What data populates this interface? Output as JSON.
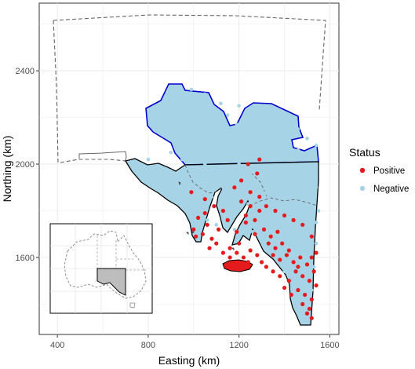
{
  "chart_data": {
    "type": "scatter",
    "subtype": "map-point-plot",
    "title": "",
    "xlabel": "Easting (km)",
    "ylabel": "Northing (km)",
    "xlim": [
      320,
      1640
    ],
    "ylim": [
      1270,
      2690
    ],
    "x_ticks": [
      400,
      800,
      1200,
      1600
    ],
    "y_ticks": [
      1600,
      2000,
      2400
    ],
    "grid": true,
    "legend_placement": "right",
    "legend": {
      "title": "Status",
      "entries": [
        {
          "label": "Positive",
          "color": "#e41a1c"
        },
        {
          "label": "Negative",
          "color": "#a6d4e6"
        }
      ]
    },
    "inset": {
      "description_icon": "australia-locator-map",
      "highlight_color": "#bdbdbd"
    },
    "outlines": {
      "region_color": "#000000",
      "extended_region_color": "#0000cc",
      "boundary_dashed_color": "#666666"
    },
    "series": [
      {
        "name": "Negative",
        "color": "#a6d4e6",
        "points": [
          [
            870,
            2220
          ],
          [
            910,
            2210
          ],
          [
            980,
            2250
          ],
          [
            1020,
            2190
          ],
          [
            1060,
            2230
          ],
          [
            1100,
            2180
          ],
          [
            1150,
            2210
          ],
          [
            1190,
            2170
          ],
          [
            1240,
            2200
          ],
          [
            1280,
            2150
          ],
          [
            1320,
            2180
          ],
          [
            1350,
            2140
          ],
          [
            1390,
            2170
          ],
          [
            1420,
            2120
          ],
          [
            1460,
            2150
          ],
          [
            1500,
            2110
          ],
          [
            1540,
            2080
          ],
          [
            960,
            2140
          ],
          [
            1010,
            2100
          ],
          [
            1060,
            2130
          ],
          [
            1110,
            2090
          ],
          [
            1160,
            2110
          ],
          [
            1210,
            2070
          ],
          [
            1260,
            2100
          ],
          [
            1310,
            2060
          ],
          [
            1360,
            2080
          ],
          [
            1410,
            2040
          ],
          [
            1460,
            2060
          ],
          [
            1510,
            2020
          ],
          [
            1540,
            1990
          ],
          [
            900,
            2050
          ],
          [
            950,
            2020
          ],
          [
            1000,
            2040
          ],
          [
            1050,
            2000
          ],
          [
            1100,
            2020
          ],
          [
            1150,
            1980
          ],
          [
            1200,
            2000
          ],
          [
            1250,
            1960
          ],
          [
            1300,
            1990
          ],
          [
            1350,
            1950
          ],
          [
            1400,
            1970
          ],
          [
            1450,
            1930
          ],
          [
            1500,
            1950
          ],
          [
            1540,
            1900
          ],
          [
            800,
            2020
          ],
          [
            850,
            1990
          ],
          [
            900,
            1970
          ],
          [
            950,
            1940
          ],
          [
            1000,
            1960
          ],
          [
            1040,
            1920
          ],
          [
            1090,
            1940
          ],
          [
            1130,
            1900
          ],
          [
            1170,
            1930
          ],
          [
            1220,
            1890
          ],
          [
            1270,
            1910
          ],
          [
            1320,
            1880
          ],
          [
            1370,
            1900
          ],
          [
            1420,
            1860
          ],
          [
            1470,
            1880
          ],
          [
            1520,
            1840
          ],
          [
            1550,
            1800
          ],
          [
            880,
            1900
          ],
          [
            920,
            1880
          ],
          [
            960,
            1860
          ],
          [
            1000,
            1880
          ],
          [
            1040,
            1840
          ],
          [
            1080,
            1860
          ],
          [
            1120,
            1820
          ],
          [
            1160,
            1850
          ],
          [
            1200,
            1810
          ],
          [
            1240,
            1830
          ],
          [
            1290,
            1800
          ],
          [
            1340,
            1820
          ],
          [
            1390,
            1790
          ],
          [
            1440,
            1810
          ],
          [
            1490,
            1770
          ],
          [
            1540,
            1750
          ],
          [
            1020,
            1780
          ],
          [
            1060,
            1760
          ],
          [
            1100,
            1740
          ],
          [
            1140,
            1760
          ],
          [
            1180,
            1720
          ],
          [
            1220,
            1740
          ],
          [
            1260,
            1710
          ],
          [
            1300,
            1730
          ],
          [
            1350,
            1700
          ],
          [
            1400,
            1720
          ],
          [
            1450,
            1690
          ],
          [
            1500,
            1710
          ],
          [
            1540,
            1660
          ],
          [
            1330,
            1640
          ],
          [
            1370,
            1620
          ],
          [
            1410,
            1600
          ],
          [
            1450,
            1620
          ],
          [
            1490,
            1580
          ],
          [
            1530,
            1560
          ],
          [
            1400,
            1540
          ],
          [
            1440,
            1500
          ],
          [
            1480,
            1480
          ],
          [
            1520,
            1460
          ],
          [
            1460,
            1420
          ],
          [
            1500,
            1400
          ],
          [
            1380,
            1680
          ],
          [
            1420,
            1660
          ],
          [
            1470,
            1640
          ],
          [
            1510,
            1620
          ],
          [
            990,
            2320
          ],
          [
            1050,
            2300
          ],
          [
            1120,
            2260
          ],
          [
            1200,
            2250
          ],
          [
            1300,
            2230
          ],
          [
            1380,
            2210
          ],
          [
            1450,
            2190
          ]
        ]
      },
      {
        "name": "Positive",
        "color": "#e41a1c",
        "points": [
          [
            990,
            1880
          ],
          [
            1050,
            1850
          ],
          [
            1090,
            1820
          ],
          [
            1130,
            1800
          ],
          [
            1020,
            1770
          ],
          [
            1060,
            1740
          ],
          [
            1000,
            1720
          ],
          [
            1040,
            1700
          ],
          [
            1080,
            1680
          ],
          [
            1110,
            1720
          ],
          [
            1150,
            1760
          ],
          [
            1190,
            1710
          ],
          [
            1230,
            1750
          ],
          [
            1270,
            1700
          ],
          [
            1310,
            1720
          ],
          [
            1340,
            1690
          ],
          [
            1370,
            1710
          ],
          [
            1330,
            1660
          ],
          [
            1360,
            1640
          ],
          [
            1390,
            1660
          ],
          [
            1420,
            1630
          ],
          [
            1350,
            1610
          ],
          [
            1380,
            1590
          ],
          [
            1410,
            1610
          ],
          [
            1440,
            1580
          ],
          [
            1470,
            1600
          ],
          [
            1500,
            1570
          ],
          [
            1530,
            1540
          ],
          [
            1480,
            1520
          ],
          [
            1510,
            1500
          ],
          [
            1540,
            1480
          ],
          [
            1460,
            1460
          ],
          [
            1490,
            1440
          ],
          [
            1520,
            1420
          ],
          [
            1480,
            1400
          ],
          [
            1510,
            1380
          ],
          [
            1500,
            1360
          ],
          [
            1520,
            1340
          ],
          [
            1180,
            1900
          ],
          [
            1210,
            1930
          ],
          [
            1250,
            1880
          ],
          [
            1290,
            1860
          ],
          [
            1210,
            1840
          ],
          [
            1250,
            1820
          ],
          [
            1290,
            1800
          ],
          [
            1230,
            1780
          ],
          [
            1270,
            1760
          ],
          [
            1160,
            1640
          ],
          [
            1190,
            1620
          ],
          [
            1220,
            1600
          ],
          [
            1250,
            1630
          ],
          [
            1280,
            1610
          ],
          [
            1240,
            1580
          ],
          [
            1300,
            1580
          ],
          [
            1320,
            1560
          ],
          [
            1350,
            1540
          ],
          [
            1380,
            1520
          ],
          [
            1420,
            1500
          ],
          [
            1450,
            1540
          ],
          [
            1400,
            1470
          ],
          [
            1430,
            1440
          ],
          [
            1460,
            1560
          ],
          [
            1520,
            1600
          ],
          [
            1540,
            1620
          ],
          [
            1100,
            1660
          ],
          [
            1070,
            1640
          ],
          [
            1130,
            1620
          ],
          [
            1520,
            1690
          ],
          [
            1480,
            1740
          ],
          [
            1440,
            1760
          ],
          [
            1400,
            1780
          ],
          [
            1360,
            1800
          ],
          [
            1320,
            1820
          ],
          [
            1280,
            1960
          ],
          [
            1240,
            2000
          ],
          [
            1290,
            2020
          ],
          [
            1050,
            1790
          ],
          [
            1010,
            1690
          ],
          [
            1160,
            1600
          ],
          [
            1200,
            1660
          ]
        ]
      }
    ]
  }
}
